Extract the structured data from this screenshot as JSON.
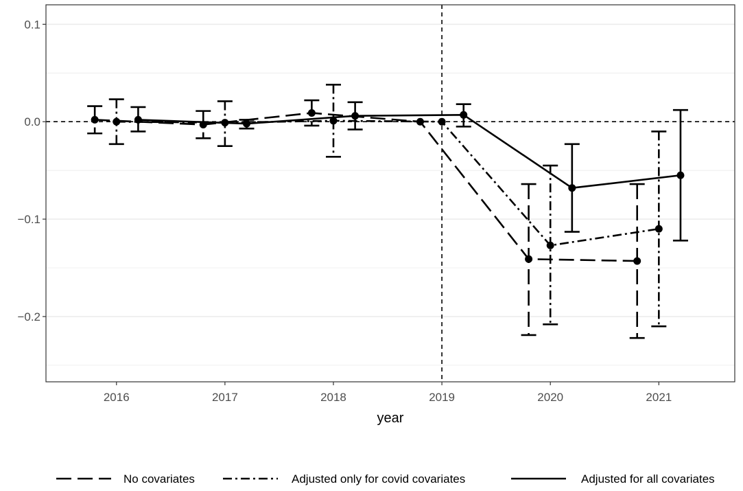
{
  "chart_data": {
    "type": "line",
    "xlabel": "year",
    "ylabel": "",
    "title": "",
    "x_ticks": [
      2016,
      2017,
      2018,
      2019,
      2020,
      2021
    ],
    "y_ticks": [
      0.1,
      0.0,
      -0.1,
      -0.2
    ],
    "y_tick_labels": [
      "0.1",
      "0.0",
      "−0.1",
      "−0.2"
    ],
    "xlim": [
      2015.35,
      2021.7
    ],
    "ylim": [
      -0.267,
      0.12
    ],
    "grid": "horizontal",
    "reference_lines": {
      "x": 2019,
      "y": 0
    },
    "legend_position": "bottom",
    "series": [
      {
        "name": "No covariates",
        "linestyle": "longdash",
        "x": [
          2016,
          2017,
          2018,
          2019,
          2020,
          2021
        ],
        "y": [
          0.002,
          -0.003,
          0.009,
          0.0,
          -0.141,
          -0.143
        ],
        "ci_low": [
          -0.012,
          -0.017,
          -0.004,
          0.0,
          -0.219,
          -0.222
        ],
        "ci_high": [
          0.016,
          0.011,
          0.022,
          0.0,
          -0.064,
          -0.064
        ]
      },
      {
        "name": "Adjusted only for covid covariates",
        "linestyle": "dotdash",
        "x": [
          2016,
          2017,
          2018,
          2019,
          2020,
          2021
        ],
        "y": [
          0.0,
          -0.001,
          0.001,
          0.0,
          -0.127,
          -0.11
        ],
        "ci_low": [
          -0.023,
          -0.025,
          -0.036,
          0.0,
          -0.208,
          -0.21
        ],
        "ci_high": [
          0.023,
          0.021,
          0.038,
          0.0,
          -0.045,
          -0.01
        ]
      },
      {
        "name": "Adjusted for all covariates",
        "linestyle": "solid",
        "x": [
          2016,
          2017,
          2018,
          2019,
          2020,
          2021
        ],
        "y": [
          0.002,
          -0.002,
          0.006,
          0.007,
          -0.068,
          -0.055
        ],
        "ci_low": [
          -0.01,
          -0.007,
          -0.008,
          -0.005,
          -0.113,
          -0.122
        ],
        "ci_high": [
          0.015,
          0.002,
          0.02,
          0.018,
          -0.023,
          0.012
        ]
      }
    ]
  }
}
